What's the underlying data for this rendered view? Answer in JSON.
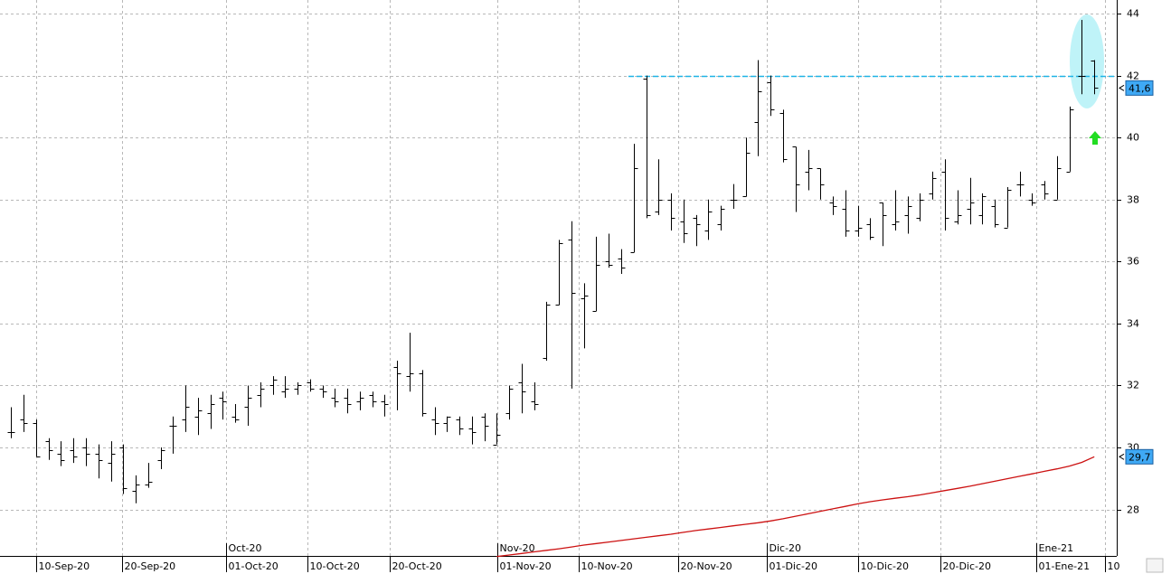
{
  "chart_data": {
    "type": "ohlc",
    "color": "#000000",
    "open": [
      30.5,
      30.9,
      30.8,
      30.2,
      29.8,
      29.9,
      30.0,
      29.8,
      29.5,
      30.0,
      28.6,
      28.8,
      29.6,
      30.7,
      30.9,
      31.0,
      31.1,
      31.6,
      31.0,
      31.3,
      31.7,
      32.0,
      31.8,
      31.9,
      32.1,
      31.9,
      31.6,
      31.6,
      31.5,
      31.7,
      31.5,
      32.6,
      32.3,
      32.4,
      30.9,
      30.8,
      30.9,
      30.6,
      31.0,
      30.1,
      31.1,
      32.1,
      31.5,
      32.9,
      34.6,
      36.7,
      34.8,
      34.4,
      36.0,
      36.1,
      36.3,
      41.9,
      37.6,
      38.0,
      37.3,
      37.4,
      37.0,
      37.2,
      38.0,
      38.1,
      40.5,
      41.8,
      40.8,
      39.7,
      38.9,
      39.0,
      37.9,
      37.7,
      37.0,
      37.2,
      37.9,
      37.2,
      37.5,
      37.4,
      38.2,
      38.9,
      37.3,
      37.7,
      37.5,
      37.8,
      37.1,
      38.5,
      38.0,
      38.5,
      38.0,
      38.9,
      42.0,
      42.5
    ],
    "high": [
      31.3,
      31.7,
      30.9,
      30.3,
      30.2,
      30.3,
      30.3,
      30.1,
      30.2,
      30.1,
      29.1,
      29.5,
      30.0,
      31.0,
      32.0,
      31.6,
      31.7,
      31.8,
      31.4,
      32.0,
      32.1,
      32.3,
      32.3,
      32.1,
      32.2,
      32.0,
      31.9,
      31.9,
      31.8,
      31.8,
      31.7,
      32.8,
      33.7,
      32.5,
      31.3,
      31.0,
      31.0,
      31.0,
      31.1,
      31.1,
      32.0,
      32.7,
      32.1,
      34.7,
      36.7,
      37.3,
      35.3,
      36.8,
      36.9,
      36.4,
      39.8,
      42.0,
      39.3,
      38.2,
      38.0,
      37.5,
      38.0,
      37.8,
      38.5,
      40.0,
      42.5,
      42.0,
      40.9,
      39.7,
      39.6,
      39.0,
      38.1,
      38.3,
      37.8,
      37.4,
      37.9,
      38.3,
      38.1,
      38.2,
      38.9,
      39.3,
      38.3,
      38.7,
      38.2,
      38.0,
      38.4,
      38.9,
      38.2,
      38.6,
      39.4,
      41.0,
      43.8,
      42.5
    ],
    "low": [
      30.3,
      30.5,
      29.7,
      29.6,
      29.4,
      29.5,
      29.4,
      29.0,
      28.9,
      28.5,
      28.2,
      28.7,
      29.3,
      29.8,
      30.5,
      30.4,
      30.6,
      30.9,
      30.8,
      30.7,
      31.3,
      31.7,
      31.6,
      31.7,
      31.8,
      31.6,
      31.3,
      31.1,
      31.2,
      31.3,
      31.0,
      31.2,
      31.8,
      31.0,
      30.4,
      30.5,
      30.4,
      30.1,
      30.2,
      30.1,
      30.9,
      31.1,
      31.2,
      32.8,
      34.6,
      31.9,
      33.2,
      34.4,
      35.8,
      35.6,
      36.3,
      37.4,
      37.5,
      37.0,
      36.6,
      36.5,
      36.7,
      37.0,
      37.7,
      38.1,
      39.4,
      40.7,
      39.2,
      37.6,
      38.3,
      38.0,
      37.5,
      36.8,
      36.8,
      36.7,
      36.5,
      37.0,
      36.9,
      37.3,
      38.0,
      37.0,
      37.2,
      37.2,
      37.2,
      37.1,
      37.1,
      38.1,
      37.8,
      38.0,
      38.0,
      38.9,
      41.4,
      41.4
    ],
    "close": [
      30.5,
      30.8,
      29.7,
      29.9,
      29.6,
      29.7,
      29.8,
      29.6,
      29.8,
      28.7,
      28.8,
      28.9,
      29.9,
      30.7,
      31.3,
      31.2,
      31.4,
      31.5,
      30.9,
      31.6,
      31.9,
      32.2,
      31.9,
      32.0,
      31.9,
      31.8,
      31.5,
      31.4,
      31.6,
      31.5,
      31.4,
      32.4,
      32.4,
      31.1,
      30.8,
      31.0,
      30.6,
      30.5,
      30.7,
      30.4,
      31.9,
      31.8,
      31.4,
      34.6,
      36.6,
      35.0,
      34.9,
      35.9,
      35.9,
      35.8,
      39.0,
      37.5,
      38.0,
      37.4,
      36.9,
      37.2,
      37.6,
      37.7,
      38.0,
      39.5,
      41.5,
      40.9,
      39.3,
      38.5,
      39.0,
      38.5,
      37.8,
      37.0,
      37.1,
      36.8,
      37.5,
      37.3,
      37.8,
      38.0,
      38.7,
      37.4,
      37.5,
      37.9,
      38.1,
      37.2,
      38.3,
      38.5,
      37.9,
      38.2,
      39.0,
      40.9,
      42.0,
      41.6
    ],
    "line": {
      "color": "#cc1111",
      "values": [
        null,
        null,
        null,
        null,
        null,
        null,
        null,
        null,
        null,
        null,
        null,
        null,
        null,
        null,
        null,
        null,
        null,
        null,
        null,
        null,
        null,
        null,
        null,
        null,
        null,
        null,
        null,
        null,
        null,
        null,
        null,
        null,
        null,
        null,
        null,
        null,
        null,
        null,
        null,
        26.48,
        26.53,
        26.58,
        26.63,
        26.68,
        26.73,
        26.79,
        26.85,
        26.9,
        26.95,
        27.0,
        27.05,
        27.1,
        27.15,
        27.2,
        27.26,
        27.32,
        27.37,
        27.42,
        27.47,
        27.52,
        27.57,
        27.63,
        27.7,
        27.78,
        27.86,
        27.94,
        28.02,
        28.1,
        28.18,
        28.25,
        28.31,
        28.36,
        28.41,
        28.47,
        28.54,
        28.61,
        28.68,
        28.75,
        28.83,
        28.91,
        28.99,
        29.07,
        29.15,
        29.23,
        29.31,
        29.4,
        29.52,
        29.7
      ]
    },
    "hline": {
      "value": 42,
      "color": "#1eb4e6"
    },
    "last_labels": [
      {
        "value": 41.6,
        "label": "41,6"
      },
      {
        "value": 29.7,
        "label": "29,7"
      }
    ],
    "xlim": [
      -0.9,
      88.8
    ],
    "ylim": [
      26.5,
      44.44
    ],
    "yticks": [
      28,
      30,
      32,
      34,
      36,
      38,
      40,
      42,
      44
    ],
    "xticks": [
      {
        "value": 2.03,
        "label": "10-Sep-20"
      },
      {
        "value": 8.93,
        "label": "20-Sep-20"
      },
      {
        "value": 17.28,
        "label": "01-Oct-20"
      },
      {
        "value": 23.82,
        "label": "10-Oct-20"
      },
      {
        "value": 30.43,
        "label": "20-Oct-20"
      },
      {
        "value": 39.07,
        "label": "01-Nov-20"
      },
      {
        "value": 45.6,
        "label": "10-Nov-20"
      },
      {
        "value": 53.6,
        "label": "20-Nov-20"
      },
      {
        "value": 60.7,
        "label": "01-Dic-20"
      },
      {
        "value": 68.0,
        "label": "10-Dic-20"
      },
      {
        "value": 74.65,
        "label": "20-Dic-20"
      },
      {
        "value": 82.3,
        "label": "01-Ene-21"
      },
      {
        "value": 87.87,
        "label": "10"
      }
    ],
    "month_ticks": [
      {
        "value": 17.28,
        "label": "Oct-20"
      },
      {
        "value": 39.07,
        "label": "Nov-20"
      },
      {
        "value": 60.7,
        "label": "Dic-20"
      },
      {
        "value": 82.3,
        "label": "Ene-21"
      }
    ],
    "grid": true
  }
}
